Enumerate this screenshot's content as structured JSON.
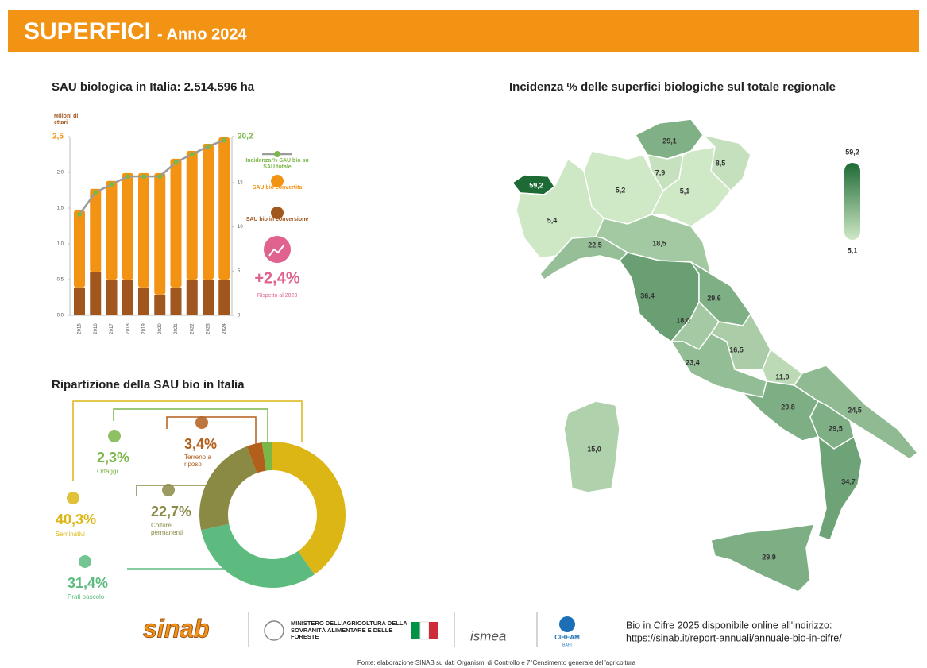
{
  "header": {
    "title": "SUPERFICI",
    "subtitle": "- Anno 2024"
  },
  "chart_data": [
    {
      "type": "bar",
      "title": "SAU biologica in Italia: 2.514.596 ha",
      "ylabel": "Milioni di ettari",
      "categories": [
        "2015",
        "2016",
        "2017",
        "2018",
        "2019",
        "2020",
        "2021",
        "2022",
        "2023",
        "2024"
      ],
      "stacked": true,
      "series": [
        {
          "name": "SAU bio in conversione",
          "color": "#a0561d",
          "values": [
            0.39,
            0.6,
            0.5,
            0.5,
            0.39,
            0.29,
            0.39,
            0.5,
            0.5,
            0.5
          ]
        },
        {
          "name": "SAU bio convertita",
          "color": "#f39313",
          "values": [
            1.08,
            1.17,
            1.38,
            1.49,
            1.6,
            1.7,
            1.8,
            1.8,
            1.9,
            1.99
          ]
        },
        {
          "name": "Incidenza % SAU bio su SAU totale",
          "color": "#7ab648",
          "type": "line",
          "axis": "y2",
          "values": [
            11.4,
            13.9,
            14.8,
            15.7,
            15.7,
            15.7,
            17.3,
            18.2,
            19.1,
            19.8
          ]
        }
      ],
      "ylim": [
        0,
        2.5
      ],
      "yticks": [
        {
          "value": 0,
          "label": "0,0"
        },
        {
          "value": 0.5,
          "label": "0,5"
        },
        {
          "value": 1,
          "label": "1,0"
        },
        {
          "value": 1.5,
          "label": "1,5"
        },
        {
          "value": 2,
          "label": "2,0"
        },
        {
          "value": 2.5,
          "label": "2,5"
        }
      ],
      "y2lim": [
        0,
        20.2
      ],
      "y2ticks": [
        0,
        5,
        10,
        15,
        {
          "value": 20.2,
          "label": "20,2"
        }
      ],
      "annotation": {
        "value": 2.4,
        "label": "+2,4%",
        "note": "Rispetto al 2023"
      }
    },
    {
      "type": "donut",
      "title": "Ripartizione della SAU bio in Italia",
      "categories": [
        "Seminativi",
        "Prati pascolo",
        "Colture permanenti",
        "Terreno a riposo",
        "Ortaggi"
      ],
      "values": [
        40.3,
        31.4,
        22.7,
        3.4,
        2.3
      ],
      "value_labels": [
        "40,3%",
        "31,4%",
        "22,7%",
        "3,4%",
        "2,3%"
      ],
      "colors": [
        "#dbb614",
        "#5dbb80",
        "#8b8a45",
        "#b25f1c",
        "#7ab648"
      ]
    }
  ],
  "map": {
    "title": "Incidenza % delle superfici biologiche sul totale regionale",
    "values": [
      59.2,
      5.4,
      5.2,
      29.1,
      7.9,
      5.1,
      8.5,
      22.5,
      18.5,
      36.4,
      29.6,
      18.0,
      23.4,
      16.5,
      11.0,
      29.8,
      24.5,
      29.5,
      34.7,
      29.9,
      15.0
    ],
    "value_labels": [
      "59,2",
      "5,4",
      "5,2",
      "29,1",
      "7,9",
      "5,1",
      "8,5",
      "22,5",
      "18,5",
      "36,4",
      "29,6",
      "18,0",
      "23,4",
      "16,5",
      "11,0",
      "29,8",
      "24,5",
      "29,5",
      "34,7",
      "29,9",
      "15,0"
    ],
    "scale": {
      "min": {
        "value": 5.1,
        "label": "5,1",
        "color": "#cfe8c6"
      },
      "max": {
        "value": 59.2,
        "label": "59,2",
        "color": "#1e6a35"
      }
    }
  },
  "footer": {
    "logo_sinab": "sinab",
    "ministry": "MINISTERO DELL'AGRICOLTURA DELLA SOVRANITÀ ALIMENTARE E DELLE FORESTE",
    "logo_ismea": "ismea",
    "logo_ciheam": "CIHEAM",
    "logo_ciheam_sub": "BARI",
    "info": "Bio in Cifre 2025 disponibile online all'indirizzo:",
    "url": "https://sinab.it/report-annuali/annuale-bio-in-cifre/",
    "source": "Fonte: elaborazione SINAB su dati Organismi di Controllo e 7°Censimento generale dell'agricoltura"
  }
}
